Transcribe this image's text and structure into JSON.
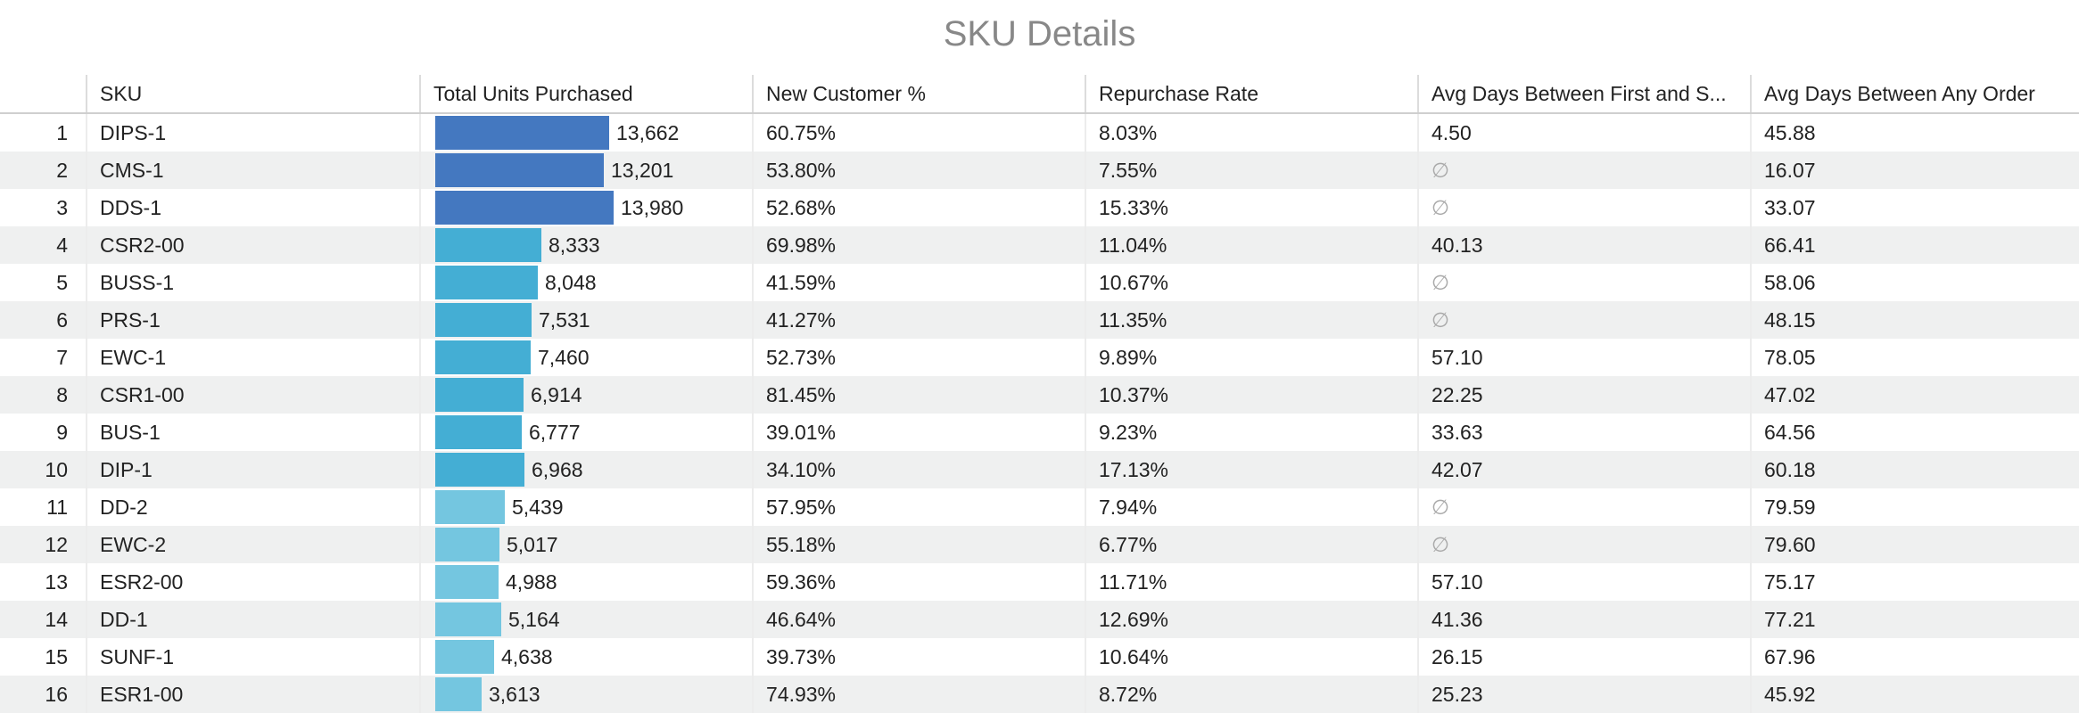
{
  "title": "SKU Details",
  "columns": [
    "",
    "SKU",
    "Total Units Purchased",
    "New Customer %",
    "Repurchase Rate",
    "Avg Days Between First and S...",
    "Avg Days Between Any Order"
  ],
  "null_symbol": "∅",
  "bar_max": 14000,
  "bar_colors": {
    "dark": "#4478c0",
    "mid": "#44aed4",
    "light": "#74c6e0"
  },
  "rows": [
    {
      "idx": "1",
      "sku": "DIPS-1",
      "units": 13662,
      "units_label": "13,662",
      "new_pct": "60.75%",
      "repurchase": "8.03%",
      "first_second": "4.50",
      "any_order": "45.88"
    },
    {
      "idx": "2",
      "sku": "CMS-1",
      "units": 13201,
      "units_label": "13,201",
      "new_pct": "53.80%",
      "repurchase": "7.55%",
      "first_second": null,
      "any_order": "16.07"
    },
    {
      "idx": "3",
      "sku": "DDS-1",
      "units": 13980,
      "units_label": "13,980",
      "new_pct": "52.68%",
      "repurchase": "15.33%",
      "first_second": null,
      "any_order": "33.07"
    },
    {
      "idx": "4",
      "sku": "CSR2-00",
      "units": 8333,
      "units_label": "8,333",
      "new_pct": "69.98%",
      "repurchase": "11.04%",
      "first_second": "40.13",
      "any_order": "66.41"
    },
    {
      "idx": "5",
      "sku": "BUSS-1",
      "units": 8048,
      "units_label": "8,048",
      "new_pct": "41.59%",
      "repurchase": "10.67%",
      "first_second": null,
      "any_order": "58.06"
    },
    {
      "idx": "6",
      "sku": "PRS-1",
      "units": 7531,
      "units_label": "7,531",
      "new_pct": "41.27%",
      "repurchase": "11.35%",
      "first_second": null,
      "any_order": "48.15"
    },
    {
      "idx": "7",
      "sku": "EWC-1",
      "units": 7460,
      "units_label": "7,460",
      "new_pct": "52.73%",
      "repurchase": "9.89%",
      "first_second": "57.10",
      "any_order": "78.05"
    },
    {
      "idx": "8",
      "sku": "CSR1-00",
      "units": 6914,
      "units_label": "6,914",
      "new_pct": "81.45%",
      "repurchase": "10.37%",
      "first_second": "22.25",
      "any_order": "47.02"
    },
    {
      "idx": "9",
      "sku": "BUS-1",
      "units": 6777,
      "units_label": "6,777",
      "new_pct": "39.01%",
      "repurchase": "9.23%",
      "first_second": "33.63",
      "any_order": "64.56"
    },
    {
      "idx": "10",
      "sku": "DIP-1",
      "units": 6968,
      "units_label": "6,968",
      "new_pct": "34.10%",
      "repurchase": "17.13%",
      "first_second": "42.07",
      "any_order": "60.18"
    },
    {
      "idx": "11",
      "sku": "DD-2",
      "units": 5439,
      "units_label": "5,439",
      "new_pct": "57.95%",
      "repurchase": "7.94%",
      "first_second": null,
      "any_order": "79.59"
    },
    {
      "idx": "12",
      "sku": "EWC-2",
      "units": 5017,
      "units_label": "5,017",
      "new_pct": "55.18%",
      "repurchase": "6.77%",
      "first_second": null,
      "any_order": "79.60"
    },
    {
      "idx": "13",
      "sku": "ESR2-00",
      "units": 4988,
      "units_label": "4,988",
      "new_pct": "59.36%",
      "repurchase": "11.71%",
      "first_second": "57.10",
      "any_order": "75.17"
    },
    {
      "idx": "14",
      "sku": "DD-1",
      "units": 5164,
      "units_label": "5,164",
      "new_pct": "46.64%",
      "repurchase": "12.69%",
      "first_second": "41.36",
      "any_order": "77.21"
    },
    {
      "idx": "15",
      "sku": "SUNF-1",
      "units": 4638,
      "units_label": "4,638",
      "new_pct": "39.73%",
      "repurchase": "10.64%",
      "first_second": "26.15",
      "any_order": "67.96"
    },
    {
      "idx": "16",
      "sku": "ESR1-00",
      "units": 3613,
      "units_label": "3,613",
      "new_pct": "74.93%",
      "repurchase": "8.72%",
      "first_second": "25.23",
      "any_order": "45.92"
    }
  ]
}
